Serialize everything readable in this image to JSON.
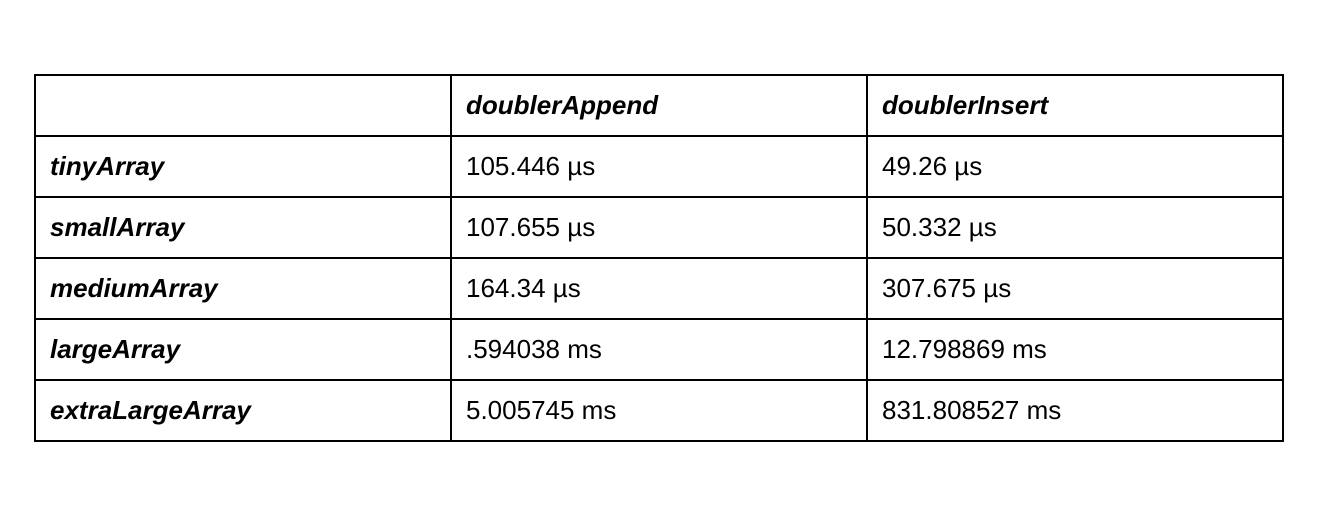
{
  "table": {
    "header": [
      "",
      "doublerAppend",
      "doublerInsert"
    ],
    "rows": [
      {
        "label": "tinyArray",
        "append": "105.446 µs",
        "insert": "49.26 µs"
      },
      {
        "label": "smallArray",
        "append": "107.655 µs",
        "insert": "50.332 µs"
      },
      {
        "label": "mediumArray",
        "append": "164.34 µs",
        "insert": "307.675 µs"
      },
      {
        "label": "largeArray",
        "append": ".594038 ms",
        "insert": "12.798869 ms"
      },
      {
        "label": "extraLargeArray",
        "append": "5.005745 ms",
        "insert": "831.808527 ms"
      }
    ]
  }
}
